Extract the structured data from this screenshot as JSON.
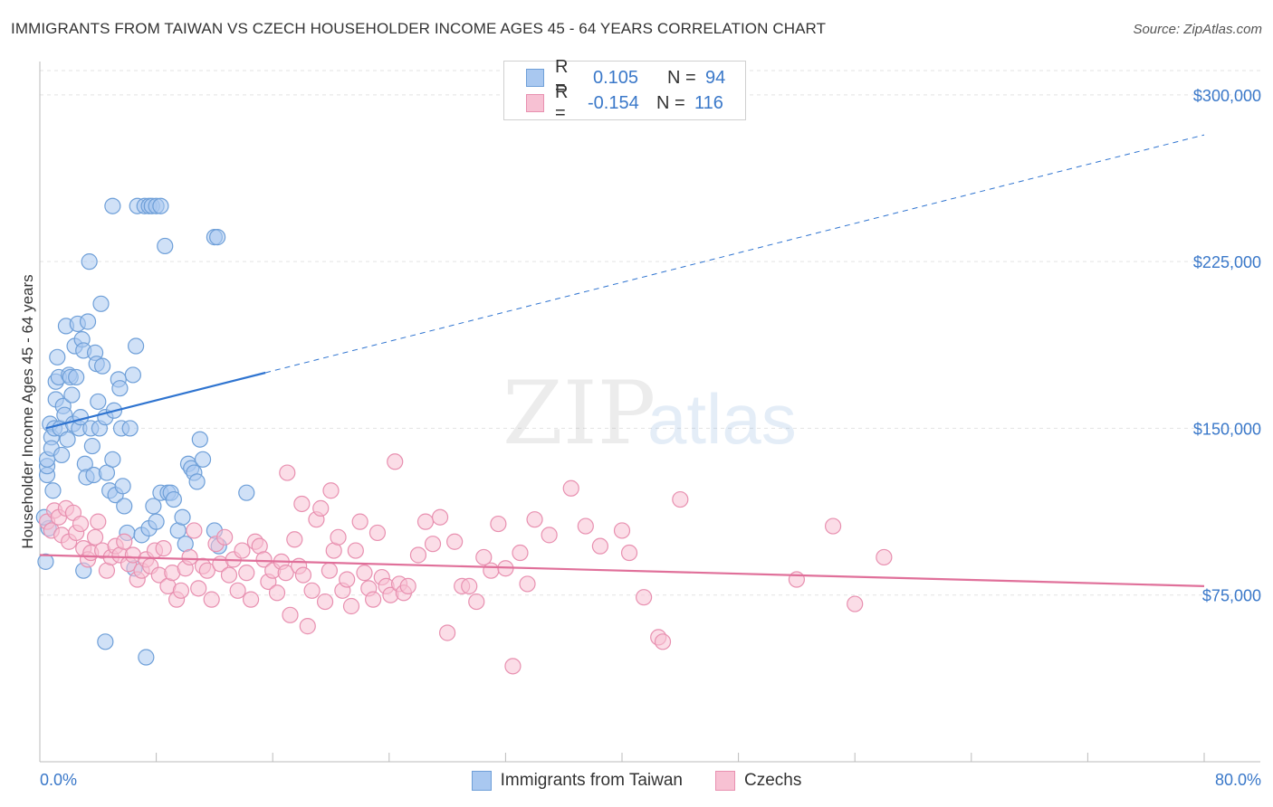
{
  "title": "IMMIGRANTS FROM TAIWAN VS CZECH HOUSEHOLDER INCOME AGES 45 - 64 YEARS CORRELATION CHART",
  "source": "Source: ZipAtlas.com",
  "watermark": {
    "zip": "ZIP",
    "atlas": "atlas"
  },
  "stats": [
    {
      "r_label": "R =",
      "r_value": "0.105",
      "n_label": "N =",
      "n_value": "94",
      "color": "#a9c8f0",
      "border": "#6e9fd8"
    },
    {
      "r_label": "R =",
      "r_value": "-0.154",
      "n_label": "N =",
      "n_value": "116",
      "color": "#f7c1d3",
      "border": "#e890b0"
    }
  ],
  "legend": [
    {
      "label": "Immigrants from Taiwan",
      "color": "#a9c8f0",
      "border": "#6e9fd8"
    },
    {
      "label": "Czechs",
      "color": "#f7c1d3",
      "border": "#e890b0"
    }
  ],
  "chart_data": {
    "type": "scatter",
    "title": "IMMIGRANTS FROM TAIWAN VS CZECH HOUSEHOLDER INCOME AGES 45 - 64 YEARS CORRELATION CHART",
    "xlabel": "",
    "ylabel": "Householder Income Ages 45 - 64 years",
    "xlim": [
      0,
      80
    ],
    "ylim": [
      0,
      315000
    ],
    "x_tick_labels": [
      "0.0%",
      "80.0%"
    ],
    "y_ticks": [
      75000,
      150000,
      225000,
      300000
    ],
    "y_tick_labels": [
      "$75,000",
      "$150,000",
      "$225,000",
      "$300,000"
    ],
    "grid": true,
    "legend_position": "bottom",
    "series": [
      {
        "name": "Immigrants from Taiwan",
        "color": "#6e9fd8",
        "fill": "#a9c8f0",
        "trend": {
          "x": [
            0.4,
            15.5,
            80
          ],
          "y": [
            150000,
            175000,
            282000
          ],
          "solid_until": 15.5,
          "color": "#2f74d0"
        },
        "points": [
          [
            0.5,
            129000
          ],
          [
            0.5,
            133000
          ],
          [
            0.5,
            136000
          ],
          [
            0.6,
            105000
          ],
          [
            0.7,
            152000
          ],
          [
            0.8,
            146000
          ],
          [
            0.8,
            141000
          ],
          [
            0.9,
            122000
          ],
          [
            1.0,
            150000
          ],
          [
            1.1,
            163000
          ],
          [
            1.1,
            171000
          ],
          [
            1.2,
            182000
          ],
          [
            1.3,
            173000
          ],
          [
            1.4,
            150000
          ],
          [
            1.5,
            138000
          ],
          [
            1.6,
            160000
          ],
          [
            1.7,
            156000
          ],
          [
            1.8,
            196000
          ],
          [
            1.9,
            145000
          ],
          [
            2.0,
            174000
          ],
          [
            2.1,
            173000
          ],
          [
            2.2,
            165000
          ],
          [
            2.3,
            152000
          ],
          [
            2.4,
            187000
          ],
          [
            2.5,
            173000
          ],
          [
            2.6,
            197000
          ],
          [
            2.7,
            150000
          ],
          [
            2.8,
            155000
          ],
          [
            2.9,
            190000
          ],
          [
            3.0,
            185000
          ],
          [
            3.1,
            134000
          ],
          [
            3.2,
            128000
          ],
          [
            3.3,
            198000
          ],
          [
            3.4,
            225000
          ],
          [
            3.5,
            150000
          ],
          [
            3.6,
            142000
          ],
          [
            3.7,
            129000
          ],
          [
            3.8,
            184000
          ],
          [
            3.9,
            179000
          ],
          [
            4.0,
            162000
          ],
          [
            4.1,
            150000
          ],
          [
            4.2,
            206000
          ],
          [
            4.3,
            178000
          ],
          [
            4.5,
            155000
          ],
          [
            4.6,
            130000
          ],
          [
            4.8,
            122000
          ],
          [
            5.0,
            136000
          ],
          [
            5.1,
            158000
          ],
          [
            5.2,
            120000
          ],
          [
            5.4,
            172000
          ],
          [
            5.5,
            168000
          ],
          [
            5.6,
            150000
          ],
          [
            5.7,
            124000
          ],
          [
            5.8,
            115000
          ],
          [
            6.0,
            103000
          ],
          [
            6.2,
            150000
          ],
          [
            6.4,
            174000
          ],
          [
            6.6,
            187000
          ],
          [
            7.0,
            102000
          ],
          [
            7.5,
            105000
          ],
          [
            7.8,
            115000
          ],
          [
            8.0,
            108000
          ],
          [
            8.3,
            121000
          ],
          [
            8.6,
            232000
          ],
          [
            8.8,
            121000
          ],
          [
            9.0,
            121000
          ],
          [
            9.2,
            118000
          ],
          [
            9.5,
            104000
          ],
          [
            9.8,
            110000
          ],
          [
            10.0,
            98000
          ],
          [
            10.2,
            134000
          ],
          [
            10.4,
            132000
          ],
          [
            10.6,
            130000
          ],
          [
            10.8,
            126000
          ],
          [
            11.0,
            145000
          ],
          [
            11.2,
            136000
          ],
          [
            12.0,
            104000
          ],
          [
            12.3,
            97000
          ],
          [
            14.2,
            121000
          ],
          [
            5.0,
            250000
          ],
          [
            6.7,
            250000
          ],
          [
            7.2,
            250000
          ],
          [
            7.5,
            250000
          ],
          [
            7.7,
            250000
          ],
          [
            8.0,
            250000
          ],
          [
            8.3,
            250000
          ],
          [
            12.0,
            236000
          ],
          [
            12.2,
            236000
          ],
          [
            4.5,
            54000
          ],
          [
            7.3,
            47000
          ],
          [
            6.5,
            87000
          ],
          [
            3.0,
            86000
          ],
          [
            0.4,
            90000
          ],
          [
            0.3,
            110000
          ]
        ]
      },
      {
        "name": "Czechs",
        "color": "#e890b0",
        "fill": "#f7c1d3",
        "trend": {
          "x": [
            0,
            80
          ],
          "y": [
            93000,
            79000
          ],
          "solid_until": 80,
          "color": "#e0709a"
        },
        "points": [
          [
            0.5,
            108000
          ],
          [
            0.8,
            104000
          ],
          [
            1.0,
            113000
          ],
          [
            1.3,
            110000
          ],
          [
            1.5,
            102000
          ],
          [
            1.8,
            114000
          ],
          [
            2.0,
            99000
          ],
          [
            2.3,
            112000
          ],
          [
            2.5,
            103000
          ],
          [
            2.8,
            107000
          ],
          [
            3.0,
            96000
          ],
          [
            3.3,
            91000
          ],
          [
            3.5,
            94000
          ],
          [
            3.8,
            101000
          ],
          [
            4.0,
            108000
          ],
          [
            4.3,
            95000
          ],
          [
            4.6,
            86000
          ],
          [
            4.9,
            92000
          ],
          [
            5.2,
            97000
          ],
          [
            5.5,
            93000
          ],
          [
            5.8,
            99000
          ],
          [
            6.1,
            89000
          ],
          [
            6.4,
            93000
          ],
          [
            6.7,
            82000
          ],
          [
            7.0,
            86000
          ],
          [
            7.3,
            91000
          ],
          [
            7.6,
            88000
          ],
          [
            7.9,
            95000
          ],
          [
            8.2,
            84000
          ],
          [
            8.5,
            96000
          ],
          [
            8.8,
            79000
          ],
          [
            9.1,
            85000
          ],
          [
            9.4,
            73000
          ],
          [
            9.7,
            77000
          ],
          [
            10.0,
            87000
          ],
          [
            10.3,
            92000
          ],
          [
            10.6,
            104000
          ],
          [
            10.9,
            78000
          ],
          [
            11.2,
            88000
          ],
          [
            11.5,
            86000
          ],
          [
            11.8,
            73000
          ],
          [
            12.1,
            98000
          ],
          [
            12.4,
            89000
          ],
          [
            12.7,
            101000
          ],
          [
            13.0,
            84000
          ],
          [
            13.3,
            91000
          ],
          [
            13.6,
            77000
          ],
          [
            13.9,
            95000
          ],
          [
            14.2,
            85000
          ],
          [
            14.5,
            73000
          ],
          [
            14.8,
            99000
          ],
          [
            15.1,
            97000
          ],
          [
            15.4,
            91000
          ],
          [
            15.7,
            81000
          ],
          [
            16.0,
            86000
          ],
          [
            16.3,
            76000
          ],
          [
            16.6,
            90000
          ],
          [
            16.9,
            85000
          ],
          [
            17.2,
            66000
          ],
          [
            17.5,
            100000
          ],
          [
            17.8,
            88000
          ],
          [
            18.1,
            84000
          ],
          [
            18.4,
            61000
          ],
          [
            18.7,
            77000
          ],
          [
            19.0,
            109000
          ],
          [
            19.3,
            114000
          ],
          [
            19.6,
            72000
          ],
          [
            19.9,
            86000
          ],
          [
            20.2,
            95000
          ],
          [
            20.5,
            101000
          ],
          [
            20.8,
            77000
          ],
          [
            21.1,
            82000
          ],
          [
            21.4,
            70000
          ],
          [
            21.7,
            95000
          ],
          [
            22.0,
            108000
          ],
          [
            22.3,
            85000
          ],
          [
            22.6,
            78000
          ],
          [
            22.9,
            73000
          ],
          [
            23.2,
            103000
          ],
          [
            23.5,
            83000
          ],
          [
            23.8,
            79000
          ],
          [
            24.1,
            75000
          ],
          [
            24.4,
            135000
          ],
          [
            24.7,
            80000
          ],
          [
            25.0,
            76000
          ],
          [
            25.3,
            79000
          ],
          [
            26.0,
            93000
          ],
          [
            26.5,
            108000
          ],
          [
            27.0,
            98000
          ],
          [
            27.5,
            110000
          ],
          [
            28.0,
            58000
          ],
          [
            28.5,
            99000
          ],
          [
            29.0,
            79000
          ],
          [
            29.5,
            79000
          ],
          [
            30.0,
            72000
          ],
          [
            30.5,
            92000
          ],
          [
            31.0,
            86000
          ],
          [
            31.5,
            107000
          ],
          [
            32.0,
            87000
          ],
          [
            32.5,
            43000
          ],
          [
            33.0,
            94000
          ],
          [
            33.5,
            80000
          ],
          [
            34.0,
            109000
          ],
          [
            35.0,
            102000
          ],
          [
            36.5,
            123000
          ],
          [
            37.5,
            106000
          ],
          [
            38.5,
            97000
          ],
          [
            40.0,
            104000
          ],
          [
            40.5,
            94000
          ],
          [
            41.5,
            74000
          ],
          [
            42.5,
            56000
          ],
          [
            42.8,
            54000
          ],
          [
            44.0,
            118000
          ],
          [
            52.0,
            82000
          ],
          [
            54.5,
            106000
          ],
          [
            56.0,
            71000
          ],
          [
            58.0,
            92000
          ],
          [
            17.0,
            130000
          ],
          [
            20.0,
            122000
          ],
          [
            18.0,
            116000
          ]
        ]
      }
    ]
  }
}
